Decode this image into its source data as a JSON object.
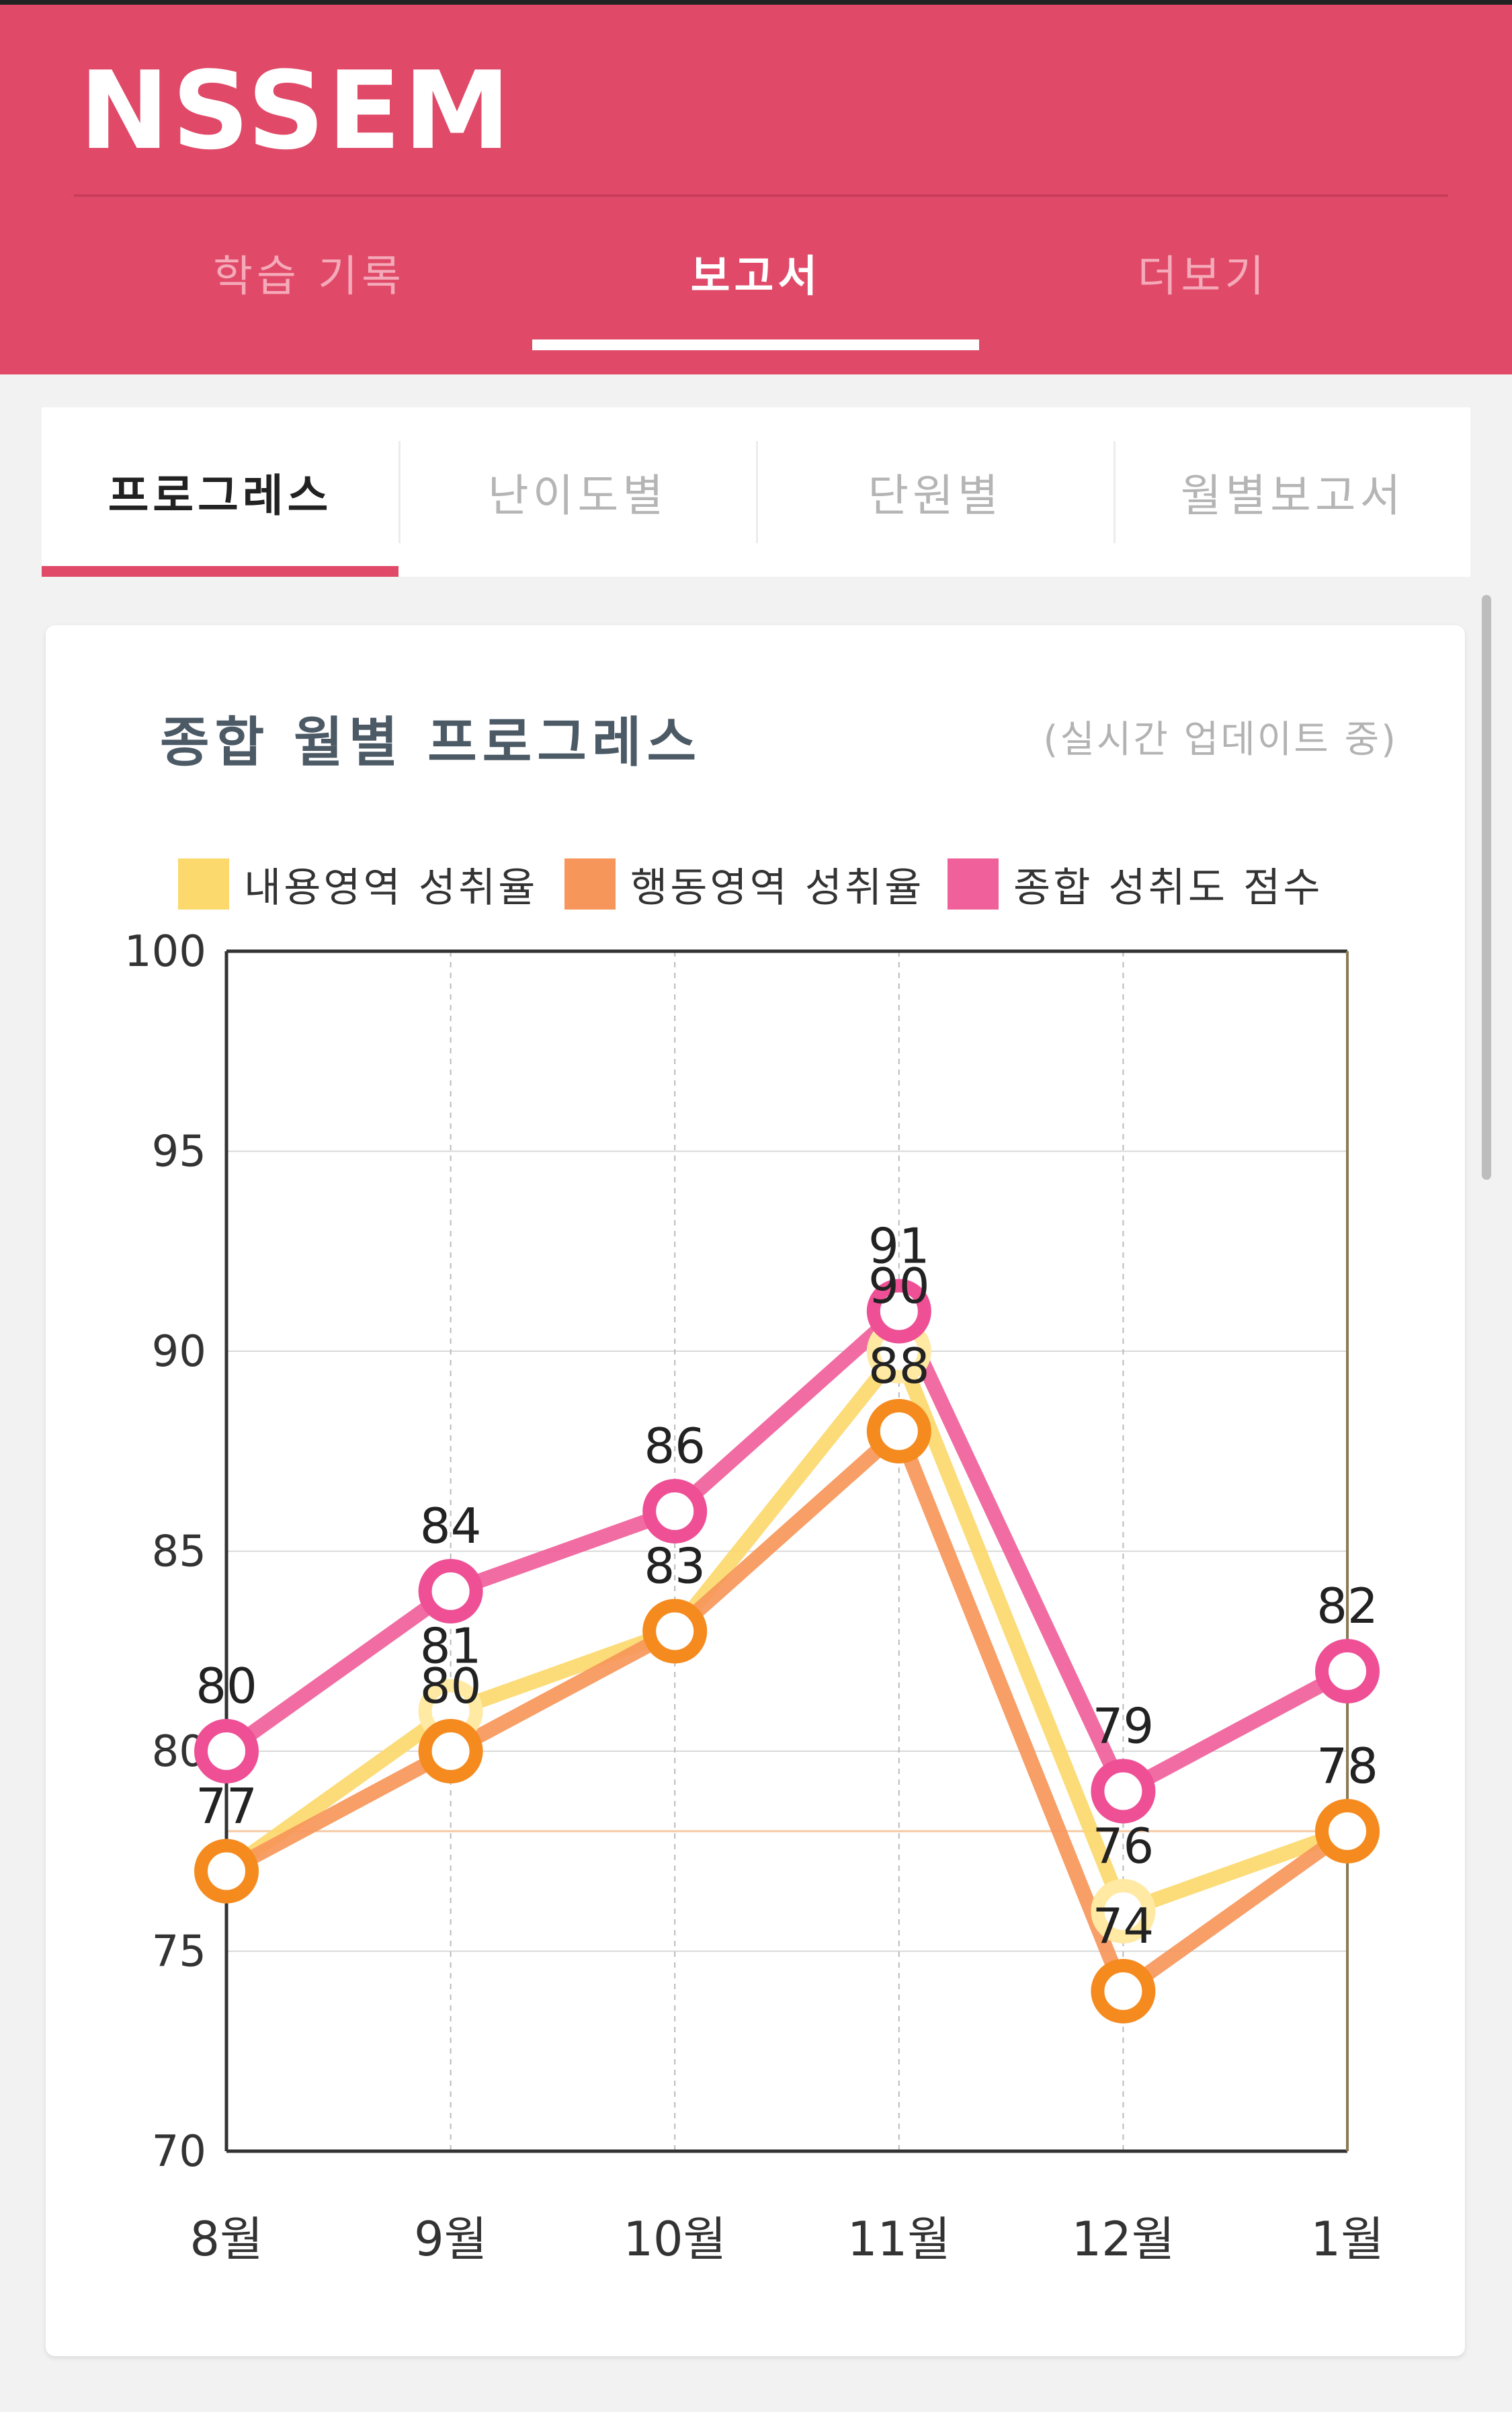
{
  "app": {
    "logo": "NSSEM",
    "tabs": [
      {
        "label": "학습 기록",
        "active": false
      },
      {
        "label": "보고서",
        "active": true
      },
      {
        "label": "더보기",
        "active": false
      }
    ],
    "accent_color": "#e04a68"
  },
  "subtabs": [
    {
      "label": "프로그레스",
      "active": true
    },
    {
      "label": "난이도별",
      "active": false
    },
    {
      "label": "단원별",
      "active": false
    },
    {
      "label": "월별보고서",
      "active": false
    }
  ],
  "card": {
    "title": "종합 월별 프로그레스",
    "subtitle": "(실시간 업데이트 중)"
  },
  "chart_data": {
    "type": "line",
    "categories": [
      "8월",
      "9월",
      "10월",
      "11월",
      "12월",
      "1월"
    ],
    "ylim": [
      70,
      100
    ],
    "yticks": [
      70,
      75,
      80,
      85,
      90,
      95,
      100
    ],
    "grid": true,
    "legend_position": "top",
    "reference_line": 78,
    "series": [
      {
        "name": "내용영역 성취율",
        "color": "#fcd96c",
        "values": [
          77,
          81,
          83,
          90,
          76,
          78
        ]
      },
      {
        "name": "행동영역 성취율",
        "color": "#f7965a",
        "values": [
          77,
          80,
          83,
          88,
          74,
          78
        ]
      },
      {
        "name": "종합 성취도 점수",
        "color": "#f0609a",
        "values": [
          80,
          84,
          86,
          91,
          79,
          82
        ]
      }
    ],
    "marker_colors": [
      "#ffe9a3",
      "#f58a1f",
      "#ee4f95"
    ]
  }
}
